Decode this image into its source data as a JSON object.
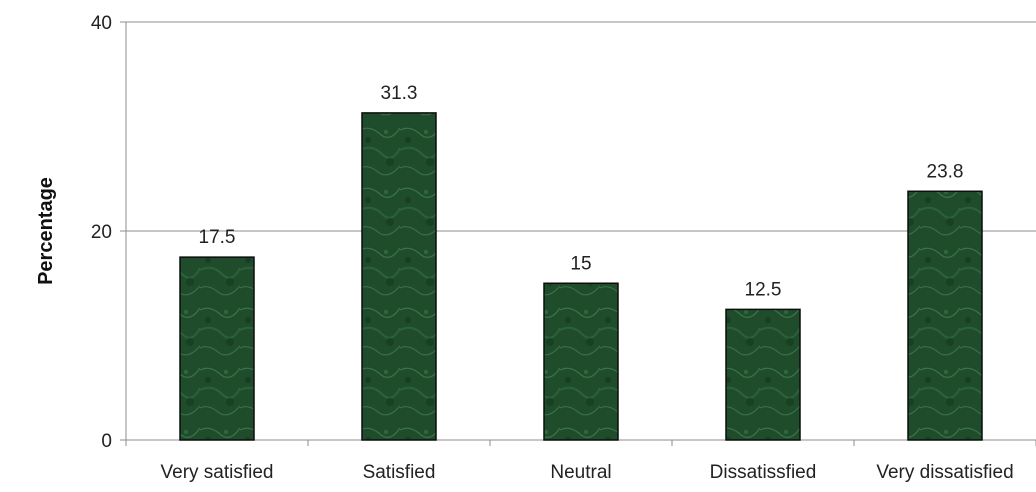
{
  "chart_data": {
    "type": "bar",
    "categories": [
      "Very satisfied",
      "Satisfied",
      "Neutral",
      "Dissatissfied",
      "Very dissatisfied"
    ],
    "values": [
      17.5,
      31.3,
      15,
      12.5,
      23.8
    ],
    "data_labels": [
      "17.5",
      "31.3",
      "15",
      "12.5",
      "23.8"
    ],
    "ylabel": "Percentage",
    "xlabel": "",
    "title": "",
    "ylim": [
      0,
      40
    ],
    "yticks": [
      0,
      20,
      40
    ],
    "grid": true,
    "legend": "none",
    "bar_color": "#1f4d2c",
    "bar_highlight": "#3f7a52"
  }
}
